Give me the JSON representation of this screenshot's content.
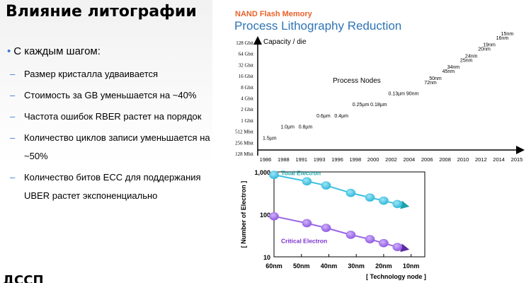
{
  "slide": {
    "title": "Влияние литографии",
    "bullet": "С каждым шагом:",
    "bullet_marker": "•",
    "sub_marker": "–",
    "sub_items": [
      "Размер кристалла удваивается",
      "Стоимость за GB уменьшается на ~40%",
      "Частота ошибок RBER растет на порядок",
      "Количество циклов записи уменьшается на ~50%",
      "Количество битов ECC для поддержания UBER растет экспоненциально"
    ],
    "footer_fragment": "ДССП"
  },
  "colors": {
    "accent": "#3a7bd5",
    "header_orange": "#e8622a",
    "header_blue": "#2e74b5",
    "total_electron": "#3cc0e0",
    "total_label": "#1aa3a8",
    "critical_electron": "#9966e6",
    "critical_label": "#7b2fd0"
  },
  "chart_data": [
    {
      "type": "scatter",
      "header": "NAND Flash Memory",
      "title": "Process Lithography Reduction",
      "ylabel": "Capacity / die",
      "annotation": "Process Nodes",
      "x_categories": [
        "1986",
        "1988",
        "1991",
        "1993",
        "1996",
        "1998",
        "2000",
        "2002",
        "2004",
        "2006",
        "2008",
        "2010",
        "2012",
        "2014",
        "2015"
      ],
      "y_categories": [
        "128 Mbit",
        "256 Mbit",
        "512 Mbit",
        "1 Gbit",
        "2 Gbit",
        "4 Gbit",
        "8 Gbit",
        "16 Gbit",
        "32 Gbit",
        "64 Gbit",
        "128 Gbit"
      ],
      "points": [
        {
          "label": "1.5µm",
          "x": "1986",
          "y": "256 Mbit"
        },
        {
          "label": "1.0µm",
          "x": "1988",
          "y": "512 Mbit"
        },
        {
          "label": "0.8µm",
          "x": "1991",
          "y": "512 Mbit"
        },
        {
          "label": "0.6µm",
          "x": "1993",
          "y": "1 Gbit"
        },
        {
          "label": "0.4µm",
          "x": "1996",
          "y": "1 Gbit"
        },
        {
          "label": "0.25µm",
          "x": "1998",
          "y": "2 Gbit"
        },
        {
          "label": "0.18µm",
          "x": "2000",
          "y": "2 Gbit"
        },
        {
          "label": "0.13µm",
          "x": "2002",
          "y": "4 Gbit"
        },
        {
          "label": "90nm",
          "x": "2004",
          "y": "4 Gbit"
        },
        {
          "label": "72nm",
          "x": "2006",
          "y": "8 Gbit"
        },
        {
          "label": "50nm",
          "x": "2006",
          "y": "8 Gbit"
        },
        {
          "label": "45nm",
          "x": "2008",
          "y": "16 Gbit"
        },
        {
          "label": "34nm",
          "x": "2008",
          "y": "16 Gbit"
        },
        {
          "label": "25nm",
          "x": "2010",
          "y": "32 Gbit"
        },
        {
          "label": "24nm",
          "x": "2010",
          "y": "32 Gbit"
        },
        {
          "label": "20nm",
          "x": "2012",
          "y": "64 Gbit"
        },
        {
          "label": "19nm",
          "x": "2012",
          "y": "64 Gbit"
        },
        {
          "label": "16nm",
          "x": "2014",
          "y": "128 Gbit"
        },
        {
          "label": "15nm",
          "x": "2014",
          "y": "128 Gbit"
        }
      ]
    },
    {
      "type": "line",
      "xlabel": "[ Technology node ]",
      "ylabel": "[ Number of Electron ]",
      "y_scale": "log",
      "ylim": [
        10,
        1000
      ],
      "y_ticks": [
        "1,000",
        "100",
        "10"
      ],
      "x_categories": [
        "60nm",
        "50nm",
        "40nm",
        "30nm",
        "20nm",
        "10nm"
      ],
      "series": [
        {
          "name": "Total Electron",
          "x": [
            60,
            48,
            41,
            32,
            25,
            20,
            15
          ],
          "values": [
            850,
            600,
            480,
            320,
            250,
            210,
            175
          ]
        },
        {
          "name": "Critical Electron",
          "x": [
            60,
            48,
            41,
            32,
            25,
            20,
            15
          ],
          "values": [
            90,
            62,
            48,
            33,
            26,
            21,
            17
          ]
        }
      ]
    }
  ]
}
